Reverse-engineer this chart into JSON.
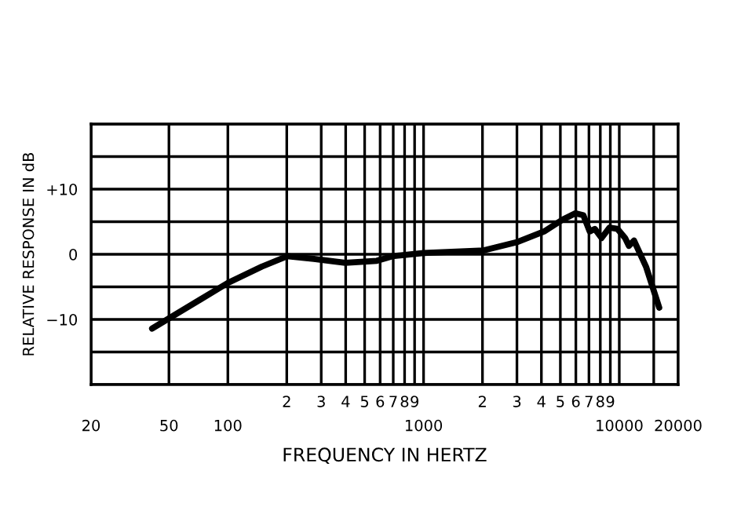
{
  "chart_data": {
    "type": "line",
    "xlabel": "FREQUENCY IN HERTZ",
    "ylabel": "RELATIVE RESPONSE IN dB",
    "log": "x",
    "xlim": [
      20,
      20000
    ],
    "xticks": [
      20,
      50,
      100,
      {
        "value": 200,
        "label": null
      },
      {
        "value": 300,
        "label": null
      },
      {
        "value": 400,
        "label": null
      },
      {
        "value": 500,
        "label": null
      },
      {
        "value": 600,
        "label": null
      },
      {
        "value": 700,
        "label": null
      },
      {
        "value": 800,
        "label": null
      },
      {
        "value": 900,
        "label": null
      },
      1000,
      {
        "value": 2000,
        "label": null
      },
      {
        "value": 3000,
        "label": null
      },
      {
        "value": 4000,
        "label": null
      },
      {
        "value": 5000,
        "label": null
      },
      {
        "value": 6000,
        "label": null
      },
      {
        "value": 7000,
        "label": null
      },
      {
        "value": 8000,
        "label": null
      },
      {
        "value": 9000,
        "label": null
      },
      10000,
      {
        "value": 15000,
        "label": null
      },
      20000
    ],
    "annotations": [
      "2",
      "3",
      "4",
      "5",
      "6",
      "7",
      "8",
      "9",
      "2",
      "3",
      "4",
      "5",
      "6",
      "7",
      "8",
      "9"
    ],
    "ylim": [
      -20,
      20
    ],
    "yticks": [
      {
        "value": -20,
        "label": null
      },
      {
        "value": -15,
        "label": null
      },
      {
        "value": -10,
        "label": "−10"
      },
      {
        "value": -5,
        "label": null
      },
      0,
      {
        "value": 5,
        "label": null
      },
      {
        "value": 10,
        "label": "+10"
      },
      {
        "value": 15,
        "label": null
      },
      {
        "value": 20,
        "label": null
      }
    ],
    "grid": true,
    "legend": false,
    "marker": "none",
    "line_style": "solid",
    "series": [
      {
        "color": "#000000",
        "x": [
          41,
          100,
          149,
          201,
          275,
          398,
          577,
          693,
          1000,
          2030,
          3030,
          4130,
          5120,
          5970,
          6550,
          7060,
          7500,
          8120,
          8920,
          9780,
          10710,
          11200,
          11900,
          13700,
          16000
        ],
        "values": [
          -11.4,
          -4.4,
          -1.9,
          -0.3,
          -0.7,
          -1.3,
          -1.0,
          -0.3,
          0.2,
          0.6,
          1.9,
          3.5,
          5.3,
          6.3,
          6.0,
          3.5,
          3.9,
          2.5,
          4.1,
          3.9,
          2.5,
          1.3,
          2.1,
          -1.9,
          -8.2
        ]
      }
    ]
  }
}
